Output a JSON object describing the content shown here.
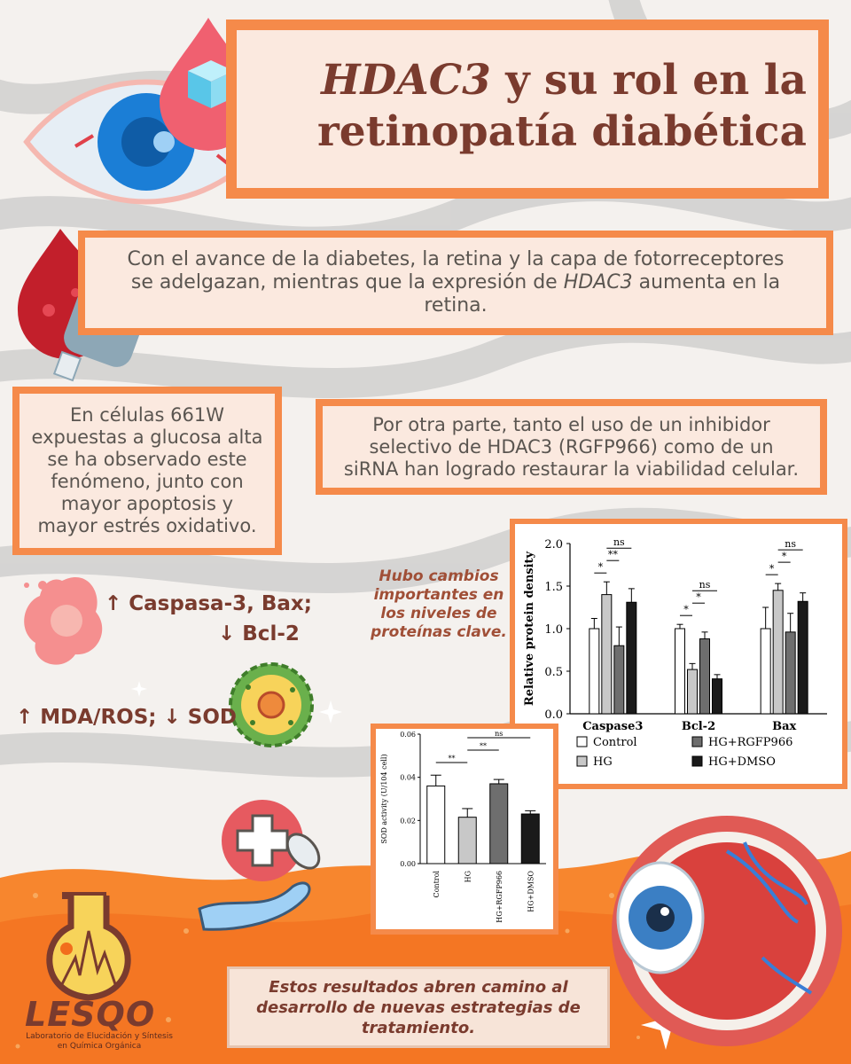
{
  "title": {
    "italic": "HDAC3",
    "rest_line1": " y su rol en la",
    "line2": "retinopatía diabética"
  },
  "box1_text": "Con el avance de la diabetes, la retina y la capa de fotorreceptores se adelgazan, mientras que la expresión de",
  "box1_italic": "HDAC3",
  "box1_tail": " aumenta en la retina.",
  "box2_text": "En células 661W expuestas a glucosa alta se ha observado este fenómeno, junto con mayor apoptosis y mayor estrés oxidativo.",
  "box3_text": "Por otra parte, tanto el uso de un inhibidor selectivo de HDAC3 (RGFP966) como de un siRNA han logrado restaurar la viabilidad celular.",
  "label1_line1": "↑ Caspasa-3, Bax;",
  "label1_line2": "↓ Bcl-2",
  "label2": "↑ MDA/ROS;  ↓ SOD",
  "note": "Hubo cambios importantes en los niveles de proteínas clave.",
  "bottom_text": "Estos resultados abren camino al desarrollo de nuevas estrategias de tratamiento.",
  "logo": {
    "name": "LESQO",
    "line1": "Laboratorio de Elucidación y Síntesis",
    "line2": "en Química Orgánica"
  },
  "colors": {
    "orange": "#f58a4a",
    "brown": "#7a3b2e",
    "cream": "#fbe9df"
  },
  "chart_data": [
    {
      "type": "bar",
      "categories": [
        "Caspase3",
        "Bcl-2",
        "Bax"
      ],
      "series": [
        {
          "name": "Control",
          "values": [
            1.0,
            1.0,
            1.0
          ],
          "err": [
            0.12,
            0.05,
            0.25
          ],
          "fill": "#ffffff"
        },
        {
          "name": "HG",
          "values": [
            1.4,
            0.52,
            1.45
          ],
          "err": [
            0.15,
            0.07,
            0.08
          ],
          "fill": "#c8c8c8"
        },
        {
          "name": "HG+RGFP966",
          "values": [
            0.8,
            0.88,
            0.96
          ],
          "err": [
            0.22,
            0.08,
            0.22
          ],
          "fill": "#6e6e6e"
        },
        {
          "name": "HG+DMSO",
          "values": [
            1.31,
            0.41,
            1.32
          ],
          "err": [
            0.16,
            0.05,
            0.1
          ],
          "fill": "#1a1a1a"
        }
      ],
      "ylabel": "Relative protein density",
      "ylim": [
        0,
        2.0
      ],
      "yticks": [
        "0.0",
        "0.5",
        "1.0",
        "1.5",
        "2.0"
      ],
      "sig": [
        [
          "*",
          "**",
          "ns"
        ],
        [
          "*",
          "*",
          "ns"
        ],
        [
          "*",
          "*",
          "ns"
        ]
      ],
      "legend_position": "bottom"
    },
    {
      "type": "bar",
      "categories": [
        "Control",
        "HG",
        "HG+RGFP966",
        "HG+DMSO"
      ],
      "values": [
        0.036,
        0.0215,
        0.037,
        0.023
      ],
      "err": [
        0.005,
        0.004,
        0.002,
        0.0015
      ],
      "fills": [
        "#ffffff",
        "#c8c8c8",
        "#6e6e6e",
        "#1a1a1a"
      ],
      "ylabel": "SOD activity (U/104 cell)",
      "ylim": [
        0,
        0.06
      ],
      "yticks": [
        "0.00",
        "0.02",
        "0.04",
        "0.06"
      ],
      "sig": [
        "**",
        "**",
        "ns"
      ]
    }
  ]
}
